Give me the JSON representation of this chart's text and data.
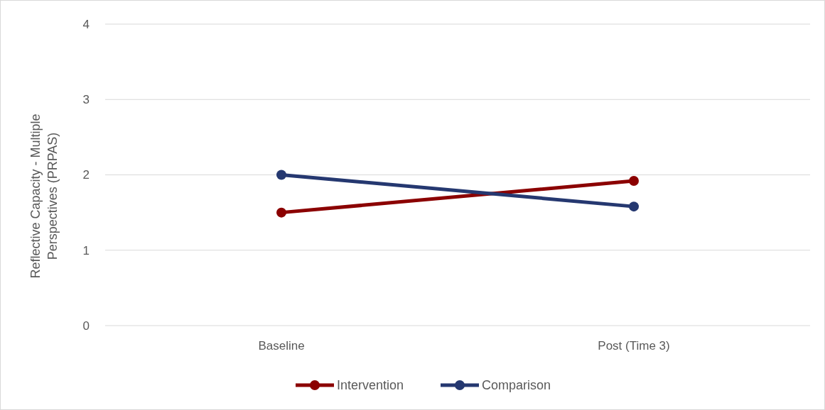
{
  "chart_data": {
    "type": "line",
    "ylabel": "Reflective Capacity - Multiple Perspectives (PRPAS)",
    "categories": [
      "Baseline",
      "Post (Time 3)"
    ],
    "series": [
      {
        "name": "Intervention",
        "color": "#8b0000",
        "values": [
          1.5,
          1.92
        ]
      },
      {
        "name": "Comparison",
        "color": "#253870",
        "values": [
          2.0,
          1.58
        ]
      }
    ],
    "ylim": [
      0,
      4
    ],
    "yticks": [
      0,
      1,
      2,
      3,
      4
    ],
    "grid": "y",
    "legend": "bottom",
    "marker": "circle",
    "line_style": "solid"
  }
}
